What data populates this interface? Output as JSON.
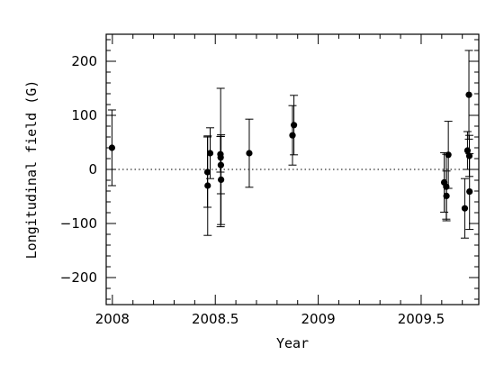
{
  "chart_data": {
    "type": "scatter",
    "title": "",
    "xlabel": "Year",
    "ylabel": "Longitudinal field (G)",
    "xlim": [
      2007.97,
      2009.78
    ],
    "ylim": [
      -250,
      250
    ],
    "x_ticks": [
      2008,
      2008.5,
      2009,
      2009.5
    ],
    "x_tick_labels": [
      "2008",
      "2008.5",
      "2009",
      "2009.5"
    ],
    "y_ticks": [
      -200,
      -100,
      0,
      100,
      200
    ],
    "y_tick_labels": [
      "−200",
      "−100",
      "0",
      "100",
      "200"
    ],
    "reference_line": {
      "y": 0,
      "style": "dotted"
    },
    "grid": false,
    "points": [
      {
        "x": 2007.998,
        "y": 40,
        "err": 70
      },
      {
        "x": 2008.462,
        "y": -5,
        "err": 65
      },
      {
        "x": 2008.463,
        "y": -30,
        "err": 92
      },
      {
        "x": 2008.475,
        "y": 30,
        "err": 47
      },
      {
        "x": 2008.525,
        "y": 28,
        "err": 33
      },
      {
        "x": 2008.526,
        "y": 22,
        "err": 128
      },
      {
        "x": 2008.527,
        "y": 8,
        "err": 53
      },
      {
        "x": 2008.528,
        "y": -19,
        "err": 83
      },
      {
        "x": 2008.665,
        "y": 30,
        "err": 63
      },
      {
        "x": 2008.875,
        "y": 63,
        "err": 55
      },
      {
        "x": 2008.882,
        "y": 82,
        "err": 55
      },
      {
        "x": 2009.612,
        "y": -24,
        "err": 55
      },
      {
        "x": 2009.622,
        "y": -32,
        "err": 60
      },
      {
        "x": 2009.623,
        "y": -49,
        "err": 46
      },
      {
        "x": 2009.632,
        "y": 27,
        "err": 62
      },
      {
        "x": 2009.712,
        "y": -72,
        "err": 55
      },
      {
        "x": 2009.725,
        "y": 35,
        "err": 35
      },
      {
        "x": 2009.732,
        "y": 138,
        "err": 82
      },
      {
        "x": 2009.734,
        "y": 25,
        "err": 38
      },
      {
        "x": 2009.735,
        "y": -41,
        "err": 70
      }
    ]
  }
}
